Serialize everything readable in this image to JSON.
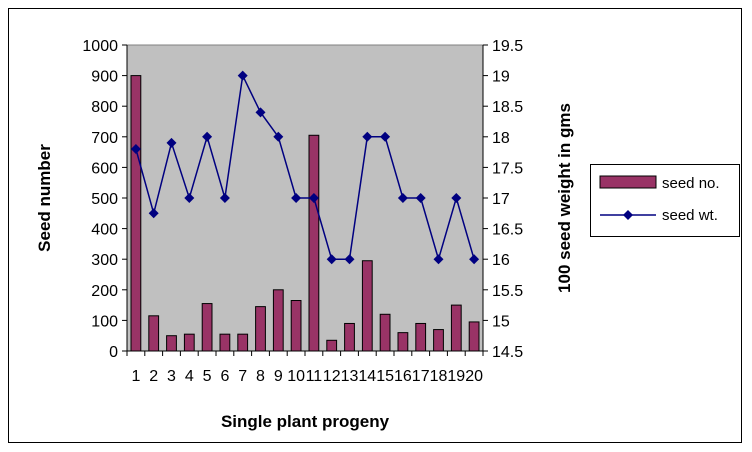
{
  "chart_data": {
    "type": "bar",
    "xlabel": "Single plant progeny",
    "ylabel": "Seed number",
    "y2label": "100 seed weight in gms",
    "categories": [
      "1",
      "2",
      "3",
      "4",
      "5",
      "6",
      "7",
      "8",
      "9",
      "10",
      "11",
      "12",
      "13",
      "14",
      "15",
      "16",
      "17",
      "18",
      "19",
      "20"
    ],
    "ylim": [
      0,
      1000
    ],
    "yticks": [
      "0",
      "100",
      "200",
      "300",
      "400",
      "500",
      "600",
      "700",
      "800",
      "900",
      "1000"
    ],
    "y2lim": [
      14.5,
      19.5
    ],
    "y2ticks": [
      "14.5",
      "15",
      "15.5",
      "16",
      "16.5",
      "17",
      "17.5",
      "18",
      "18.5",
      "19",
      "19.5"
    ],
    "grid": false,
    "legend_position": "right",
    "series": [
      {
        "name": "seed no.",
        "type": "bar",
        "axis": "left",
        "color": "#993366",
        "values": [
          900,
          115,
          50,
          55,
          155,
          55,
          55,
          145,
          200,
          165,
          705,
          35,
          90,
          295,
          120,
          60,
          90,
          70,
          150,
          95
        ]
      },
      {
        "name": "seed wt.",
        "type": "line",
        "axis": "right",
        "color": "#000080",
        "values": [
          17.8,
          16.75,
          17.9,
          17.0,
          18.0,
          17.0,
          19.0,
          18.4,
          18.0,
          17.0,
          17.0,
          16.0,
          16.0,
          18.0,
          18.0,
          17.0,
          17.0,
          16.0,
          17.0,
          16.0
        ]
      }
    ],
    "colors": {
      "plot_background": "#c0c0c0",
      "bar_fill": "#993366",
      "line": "#000080"
    }
  }
}
